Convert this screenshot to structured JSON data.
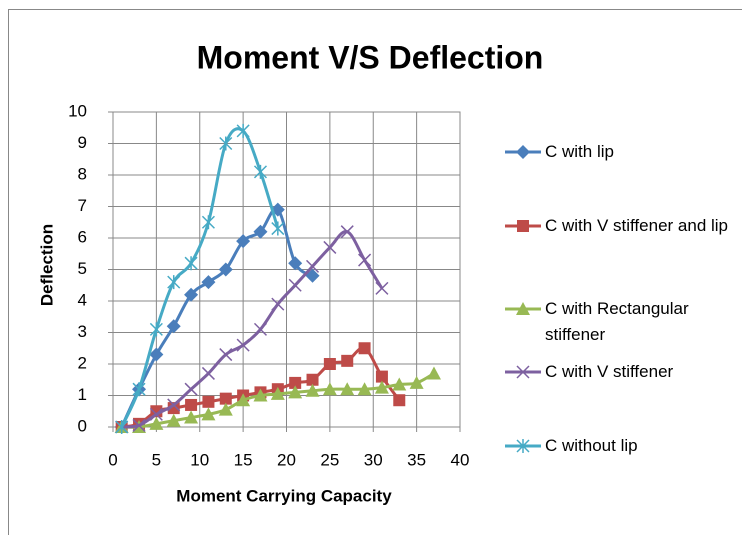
{
  "chart_data": {
    "type": "scatter",
    "title": "Moment V/S Deflection",
    "xlabel": "Moment Carrying Capacity",
    "ylabel": "Deflection",
    "xlim": [
      0,
      40
    ],
    "xticks": [
      0,
      5,
      10,
      15,
      20,
      25,
      30,
      35,
      40
    ],
    "ylim": [
      0,
      10
    ],
    "yticks": [
      0,
      1,
      2,
      3,
      4,
      5,
      6,
      7,
      8,
      9,
      10
    ],
    "grid": true,
    "smooth": true,
    "legend": "right",
    "series": [
      {
        "name": "C with lip",
        "color": "#4a7ebb",
        "marker": "diamond",
        "x": [
          1,
          3,
          5,
          7,
          9,
          11,
          13,
          15,
          17,
          19,
          21,
          23
        ],
        "values": [
          0,
          1.2,
          2.3,
          3.2,
          4.2,
          4.6,
          5.0,
          5.9,
          6.2,
          6.9,
          5.2,
          4.8
        ]
      },
      {
        "name": "C with V stiffener and lip",
        "color": "#be4b48",
        "marker": "square",
        "x": [
          1,
          3,
          5,
          7,
          9,
          11,
          13,
          15,
          17,
          19,
          21,
          23,
          25,
          27,
          29,
          31,
          33
        ],
        "values": [
          0,
          0.1,
          0.5,
          0.6,
          0.7,
          0.8,
          0.9,
          1.0,
          1.1,
          1.2,
          1.4,
          1.5,
          2.0,
          2.1,
          2.5,
          1.6,
          0.85
        ]
      },
      {
        "name": "C with Rectangular stiffener",
        "color": "#98b954",
        "marker": "triangle",
        "x": [
          1,
          3,
          5,
          7,
          9,
          11,
          13,
          15,
          17,
          19,
          21,
          23,
          25,
          27,
          29,
          31,
          33,
          35,
          37
        ],
        "values": [
          0,
          0,
          0.1,
          0.2,
          0.3,
          0.4,
          0.55,
          0.85,
          1.0,
          1.05,
          1.1,
          1.15,
          1.2,
          1.2,
          1.2,
          1.25,
          1.35,
          1.4,
          1.7
        ]
      },
      {
        "name": "C with V stiffener",
        "color": "#7d60a0",
        "marker": "x",
        "x": [
          1,
          3,
          5,
          7,
          9,
          11,
          13,
          15,
          17,
          19,
          21,
          23,
          25,
          27,
          29,
          31
        ],
        "values": [
          0,
          0.05,
          0.4,
          0.7,
          1.2,
          1.7,
          2.3,
          2.6,
          3.1,
          3.9,
          4.5,
          5.1,
          5.7,
          6.2,
          5.3,
          4.4
        ]
      },
      {
        "name": "C without lip",
        "color": "#46aac5",
        "marker": "star",
        "x": [
          1,
          3,
          5,
          7,
          9,
          11,
          13,
          15,
          17,
          19
        ],
        "values": [
          0,
          1.2,
          3.1,
          4.6,
          5.2,
          6.5,
          9.0,
          9.4,
          8.1,
          6.3
        ]
      }
    ]
  }
}
